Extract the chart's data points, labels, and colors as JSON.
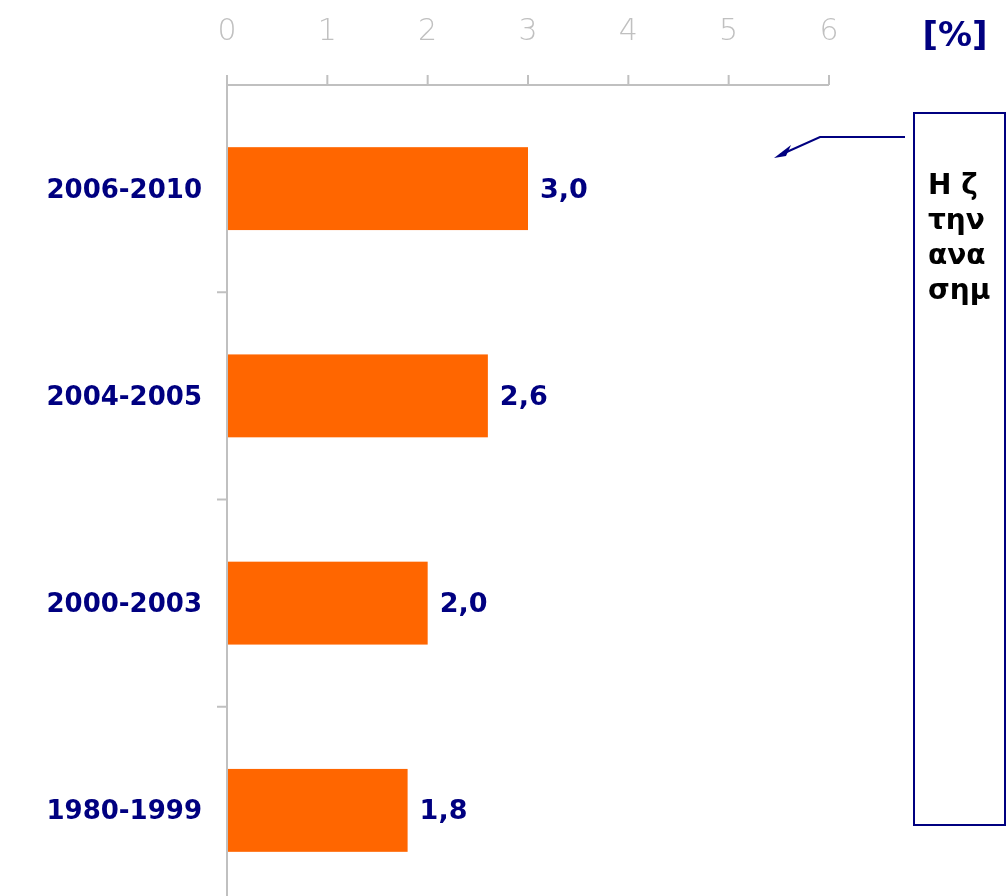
{
  "chart_data": {
    "type": "bar",
    "orientation": "horizontal",
    "xlabel": "[%]",
    "categories": [
      "2006-2010",
      "2004-2005",
      "2000-2003",
      "1980-1999"
    ],
    "values": [
      3.0,
      2.6,
      2.0,
      1.8
    ],
    "color": "#ff6600",
    "value_labels": [
      "3,0",
      "2,6",
      "2,0",
      "1,8"
    ],
    "xlim": [
      0,
      6
    ],
    "xticks": [
      0,
      1,
      2,
      3,
      4,
      5,
      6
    ],
    "grid": false,
    "annotations": [
      "Η ζ\nτην\nανα\nσημ"
    ]
  }
}
